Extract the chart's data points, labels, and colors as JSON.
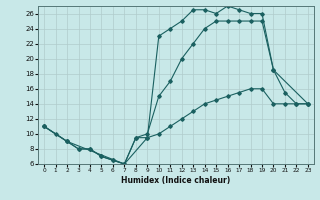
{
  "xlabel": "Humidex (Indice chaleur)",
  "bg_color": "#c8e8e8",
  "line_color": "#1a6060",
  "grid_color": "#b0cccc",
  "xlim": [
    -0.5,
    23.5
  ],
  "ylim": [
    6,
    27
  ],
  "xticks": [
    0,
    1,
    2,
    3,
    4,
    5,
    6,
    7,
    8,
    9,
    10,
    11,
    12,
    13,
    14,
    15,
    16,
    17,
    18,
    19,
    20,
    21,
    22,
    23
  ],
  "yticks": [
    6,
    8,
    10,
    12,
    14,
    16,
    18,
    20,
    22,
    24,
    26
  ],
  "line1_x": [
    0,
    1,
    2,
    3,
    4,
    5,
    6,
    7,
    8,
    9,
    10,
    11,
    12,
    13,
    14,
    15,
    16,
    17,
    18,
    19,
    20,
    21,
    22,
    23
  ],
  "line1_y": [
    11,
    10,
    9,
    8,
    8,
    7,
    6.5,
    6,
    9.5,
    9.5,
    23,
    24,
    25,
    26.5,
    26.5,
    26,
    27,
    26.5,
    26,
    26,
    18.5,
    15.5,
    14,
    14
  ],
  "line2_x": [
    0,
    2,
    3,
    4,
    5,
    6,
    7,
    8,
    9,
    10,
    11,
    12,
    13,
    14,
    15,
    16,
    17,
    18,
    19,
    20,
    23
  ],
  "line2_y": [
    11,
    9,
    8,
    8,
    7,
    6.5,
    6,
    9.5,
    10,
    15,
    17,
    20,
    22,
    24,
    25,
    25,
    25,
    25,
    25,
    18.5,
    14
  ],
  "line3_x": [
    0,
    2,
    7,
    9,
    10,
    11,
    12,
    13,
    14,
    15,
    16,
    17,
    18,
    19,
    20,
    21,
    22,
    23
  ],
  "line3_y": [
    11,
    9,
    6,
    9.5,
    10,
    11,
    12,
    13,
    14,
    14.5,
    15,
    15.5,
    16,
    16,
    14,
    14,
    14,
    14
  ]
}
